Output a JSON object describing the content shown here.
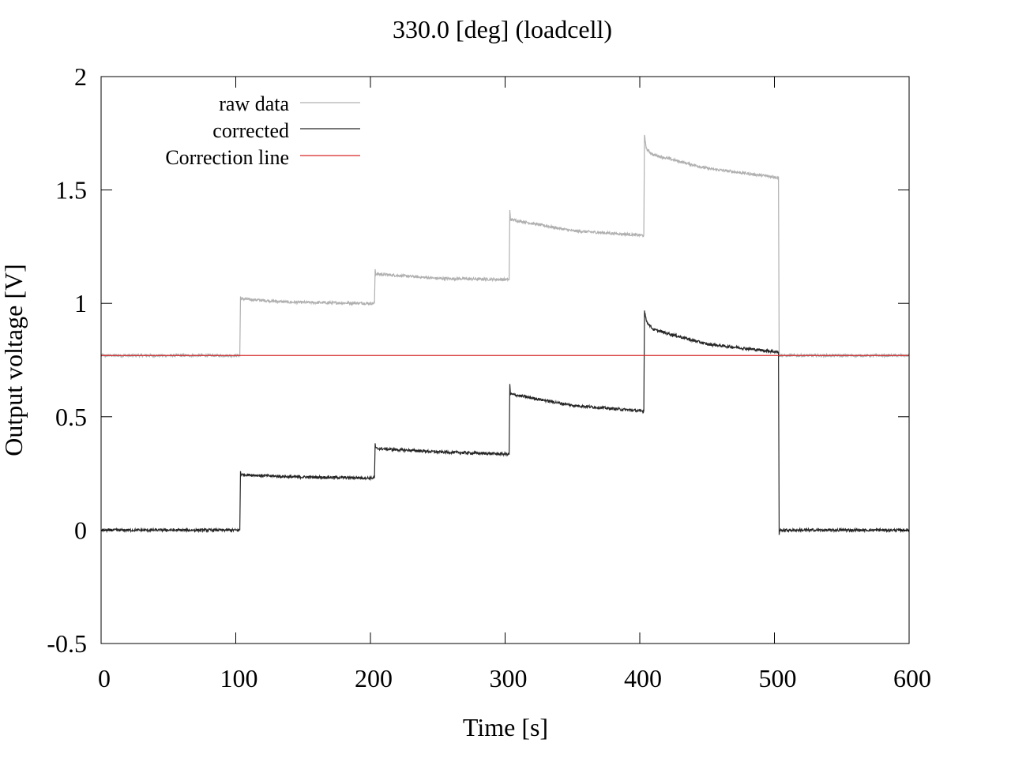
{
  "chart_data": {
    "type": "line",
    "title": "330.0 [deg] (loadcell)",
    "xlabel": "Time [s]",
    "ylabel": "Output voltage [V]",
    "xlim": [
      0,
      600
    ],
    "ylim": [
      -0.5,
      2
    ],
    "xticks": [
      0,
      100,
      200,
      300,
      400,
      500,
      600
    ],
    "yticks": [
      -0.5,
      0,
      0.5,
      1,
      1.5,
      2
    ],
    "xtick_labels": [
      "0",
      "100",
      "200",
      "300",
      "400",
      "500",
      "600"
    ],
    "ytick_labels": [
      "-0.5",
      "0",
      "0.5",
      "1",
      "1.5",
      "2"
    ],
    "grid": false,
    "legend_position": "top-left",
    "series": [
      {
        "name": "raw data",
        "color": "#b0b0b0",
        "x": [
          0,
          103,
          103.5,
          104,
          140,
          200,
          203,
          203.5,
          204,
          250,
          302,
          303,
          303.5,
          304,
          350,
          402,
          403,
          403.5,
          405,
          410,
          450,
          503,
          503.5,
          600
        ],
        "y": [
          0.77,
          0.77,
          1.03,
          1.02,
          1.005,
          1.0,
          1.0,
          1.15,
          1.13,
          1.11,
          1.105,
          1.105,
          1.41,
          1.37,
          1.32,
          1.3,
          1.3,
          1.74,
          1.68,
          1.655,
          1.595,
          1.555,
          0.77,
          0.77
        ]
      },
      {
        "name": "corrected",
        "color": "#262626",
        "x": [
          0,
          103,
          103.5,
          104,
          140,
          200,
          203,
          203.5,
          204,
          250,
          302,
          303,
          303.5,
          304,
          350,
          402,
          403,
          403.5,
          405,
          410,
          450,
          503,
          503.5,
          504,
          600
        ],
        "y": [
          0.0,
          0.0,
          0.26,
          0.245,
          0.235,
          0.23,
          0.23,
          0.38,
          0.36,
          0.345,
          0.335,
          0.335,
          0.64,
          0.6,
          0.55,
          0.525,
          0.525,
          0.97,
          0.92,
          0.885,
          0.82,
          0.785,
          -0.02,
          0.0,
          0.0
        ]
      },
      {
        "name": "Correction line",
        "color": "#d62728",
        "x": [
          0,
          600
        ],
        "y": [
          0.77,
          0.77
        ]
      }
    ]
  }
}
